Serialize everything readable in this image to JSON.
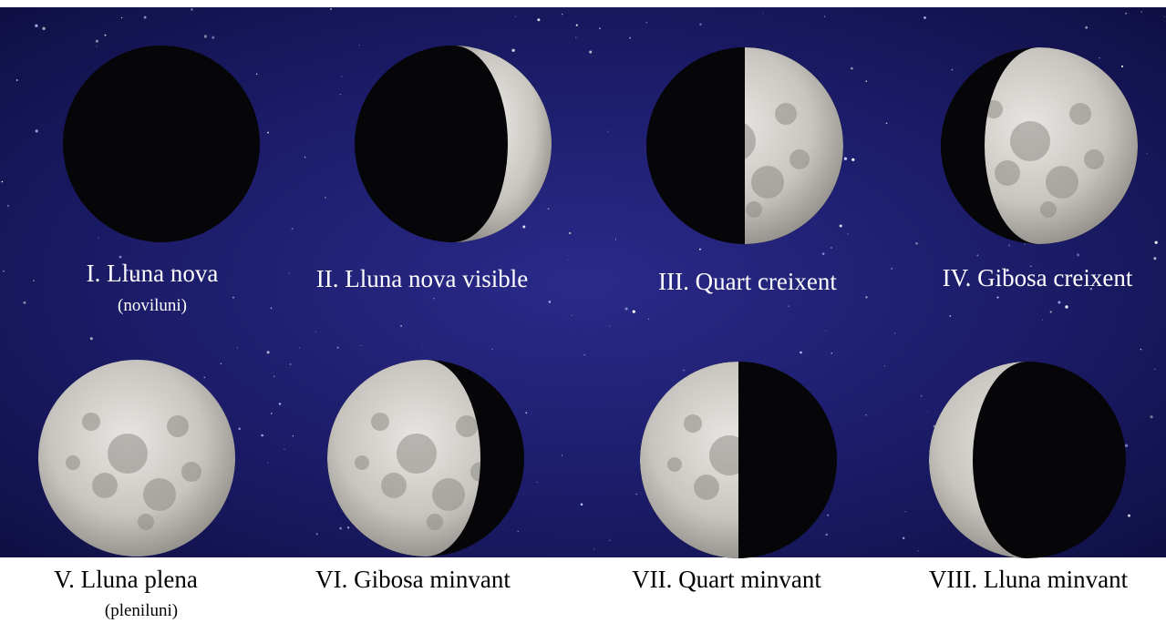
{
  "phases": [
    {
      "label": "I. Lluna nova",
      "note": "(noviluni)"
    },
    {
      "label": "II. Lluna nova visible"
    },
    {
      "label": "III. Quart creixent"
    },
    {
      "label": "IV. Gibosa creixent"
    },
    {
      "label": "V. Lluna plena",
      "note": "(pleniluni)"
    },
    {
      "label": "VI. Gibosa minvant"
    },
    {
      "label": "VII. Quart minvant"
    },
    {
      "label": "VIII. Lluna minvant"
    }
  ]
}
